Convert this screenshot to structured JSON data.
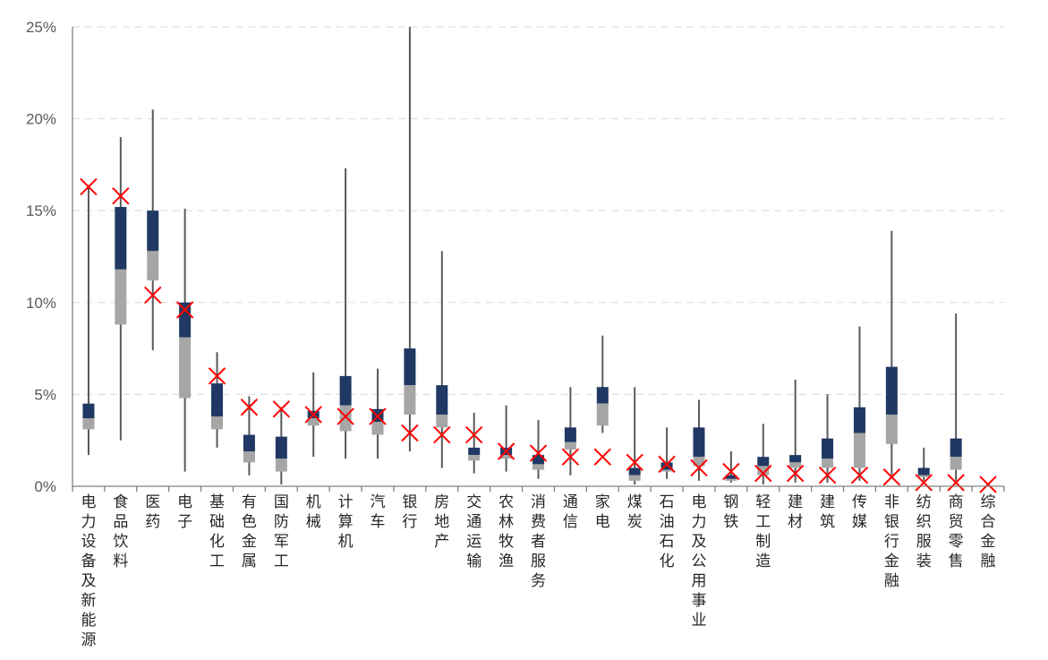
{
  "chart_data": {
    "type": "box",
    "title": "",
    "xlabel": "",
    "ylabel": "",
    "ylim": [
      0,
      25
    ],
    "y_ticks": [
      "0%",
      "5%",
      "10%",
      "15%",
      "20%",
      "25%"
    ],
    "y_tick_values": [
      0,
      5,
      10,
      15,
      20,
      25
    ],
    "grid": true,
    "colors": {
      "upper_box": "#1f3864",
      "lower_box": "#a6a6a6",
      "whisker": "#595959",
      "marker": "#ff0000"
    },
    "categories": [
      "电力设备及新能源",
      "食品饮料",
      "医药",
      "电子",
      "基础化工",
      "有色金属",
      "国防军工",
      "机械",
      "计算机",
      "汽车",
      "银行",
      "房地产",
      "交通运输",
      "农林牧渔",
      "消费者服务",
      "通信",
      "家电",
      "煤炭",
      "石油石化",
      "电力及公用事业",
      "钢铁",
      "轻工制造",
      "建材",
      "建筑",
      "传媒",
      "非银行金融",
      "纺织服装",
      "商贸零售",
      "综合金融"
    ],
    "series": [
      {
        "name": "",
        "key": "max",
        "values": [
          16.4,
          19.0,
          20.5,
          15.1,
          7.3,
          4.9,
          4.3,
          6.2,
          17.3,
          6.4,
          25.0,
          12.8,
          4.0,
          4.4,
          3.6,
          5.4,
          8.2,
          5.4,
          3.2,
          4.7,
          1.9,
          3.4,
          5.8,
          5.0,
          8.7,
          13.9,
          2.1,
          9.4,
          0.0
        ]
      },
      {
        "name": "",
        "key": "q3",
        "values": [
          4.5,
          15.2,
          15.0,
          10.0,
          5.6,
          2.8,
          2.7,
          4.1,
          6.0,
          4.2,
          7.5,
          5.5,
          2.1,
          2.1,
          1.7,
          3.2,
          5.4,
          1.0,
          1.3,
          3.2,
          0.6,
          1.6,
          1.7,
          2.6,
          4.3,
          6.5,
          1.0,
          2.6,
          0.0
        ]
      },
      {
        "name": "",
        "key": "median",
        "values": [
          3.7,
          11.8,
          12.8,
          8.1,
          3.8,
          1.9,
          1.5,
          3.7,
          4.4,
          3.5,
          5.5,
          3.9,
          1.7,
          1.7,
          1.2,
          2.4,
          4.5,
          0.6,
          0.9,
          1.6,
          0.4,
          1.1,
          1.3,
          1.5,
          2.9,
          3.9,
          0.6,
          1.6,
          0.0
        ]
      },
      {
        "name": "",
        "key": "q1",
        "values": [
          3.1,
          8.8,
          11.2,
          4.8,
          3.1,
          1.3,
          0.8,
          3.3,
          3.0,
          2.8,
          3.9,
          3.2,
          1.4,
          1.5,
          0.9,
          2.0,
          3.3,
          0.3,
          0.8,
          1.1,
          0.3,
          0.6,
          1.0,
          1.0,
          1.0,
          2.3,
          0.5,
          0.9,
          0.0
        ]
      },
      {
        "name": "",
        "key": "min",
        "values": [
          1.7,
          2.5,
          7.4,
          0.8,
          2.1,
          0.6,
          0.1,
          1.6,
          1.5,
          1.5,
          1.9,
          1.0,
          0.7,
          0.8,
          0.4,
          0.6,
          2.9,
          0.1,
          0.4,
          0.3,
          0.2,
          0.1,
          0.2,
          0.2,
          0.3,
          0.6,
          0.3,
          0.3,
          0.0
        ]
      },
      {
        "name": "",
        "key": "current",
        "values": [
          16.3,
          15.8,
          10.4,
          9.6,
          6.0,
          4.3,
          4.2,
          3.9,
          3.8,
          3.8,
          2.9,
          2.8,
          2.8,
          1.9,
          1.8,
          1.6,
          1.6,
          1.3,
          1.2,
          1.0,
          0.8,
          0.7,
          0.7,
          0.6,
          0.6,
          0.5,
          0.2,
          0.2,
          0.1
        ]
      }
    ]
  }
}
